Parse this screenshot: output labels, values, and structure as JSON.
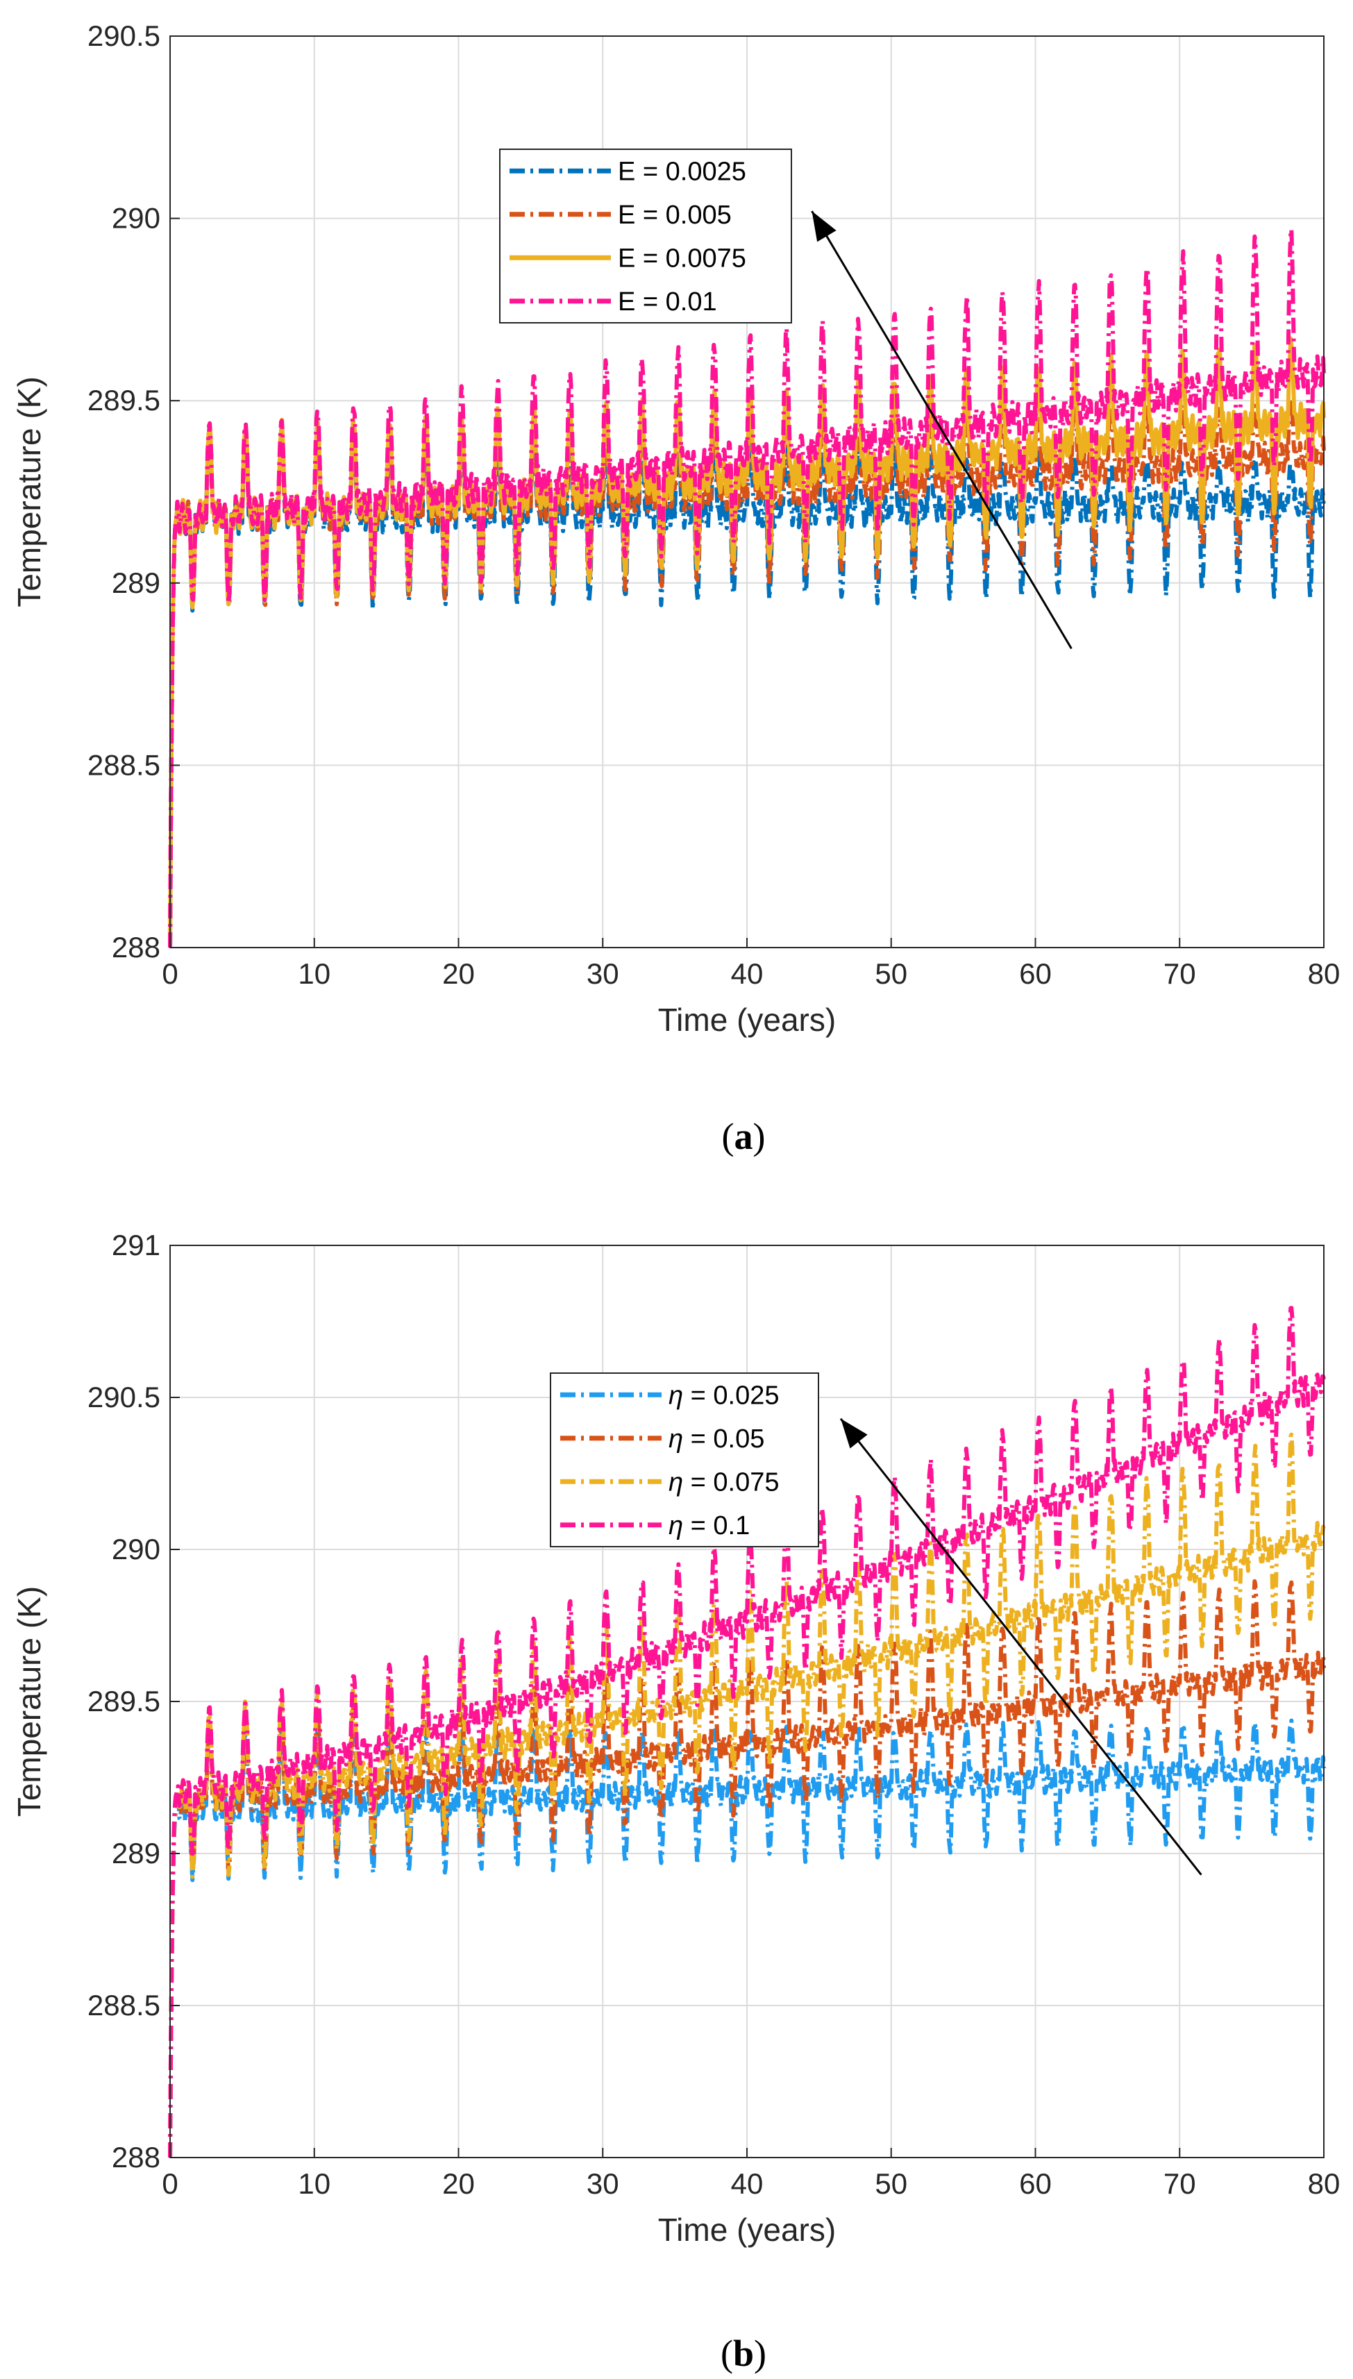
{
  "chart_data": [
    {
      "type": "line",
      "panel_caption": "a",
      "xlabel": "Time (years)",
      "ylabel": "Temperature (K)",
      "xlim": [
        0,
        80
      ],
      "ylim": [
        288,
        290.5
      ],
      "xticks": [
        "0",
        "10",
        "20",
        "30",
        "40",
        "50",
        "60",
        "70",
        "80"
      ],
      "yticks": [
        "288",
        "288.5",
        "289",
        "289.5",
        "290",
        "290.5"
      ],
      "grid": true,
      "legend_location": "upper-middle",
      "arrow": {
        "from": [
          62.5,
          288.82
        ],
        "to": [
          44.5,
          290.02
        ],
        "meaning": "increasing parameter"
      },
      "series": [
        {
          "name": "E = 0.0025",
          "color": "#0072BD",
          "dash": "dashdot",
          "start_temp": 288.0,
          "base": 289.18,
          "end_base": 289.22,
          "peak_start": 0.24,
          "peak_end": 0.1,
          "trough": 0.24
        },
        {
          "name": "E = 0.005",
          "color": "#D95319",
          "dash": "dashdot",
          "start_temp": 288.0,
          "base": 289.18,
          "end_base": 289.35,
          "peak_start": 0.24,
          "peak_end": 0.15,
          "trough": 0.24
        },
        {
          "name": "E = 0.0075",
          "color": "#EDB120",
          "dash": "solid",
          "start_temp": 288.0,
          "base": 289.18,
          "end_base": 289.45,
          "peak_start": 0.24,
          "peak_end": 0.22,
          "trough": 0.24
        },
        {
          "name": "E = 0.01",
          "color": "#FF1493",
          "dash": "dashdot",
          "start_temp": 288.0,
          "base": 289.18,
          "end_base": 289.58,
          "peak_start": 0.24,
          "peak_end": 0.4,
          "trough": 0.24
        }
      ]
    },
    {
      "type": "line",
      "panel_caption": "b",
      "xlabel": "Time (years)",
      "ylabel": "Temperature (K)",
      "xlim": [
        0,
        80
      ],
      "ylim": [
        288,
        291
      ],
      "xticks": [
        "0",
        "10",
        "20",
        "30",
        "40",
        "50",
        "60",
        "70",
        "80"
      ],
      "yticks": [
        "288",
        "288.5",
        "289",
        "289.5",
        "290",
        "290.5",
        "291"
      ],
      "grid": true,
      "legend_location": "upper-middle",
      "arrow": {
        "from": [
          71.5,
          288.93
        ],
        "to": [
          46.5,
          290.43
        ],
        "meaning": "increasing parameter"
      },
      "series": [
        {
          "name_symbol": "η",
          "name_value": " = 0.025",
          "color": "#1F9BF0",
          "dash": "dashdot",
          "start_temp": 288.0,
          "base": 289.15,
          "end_base": 289.28,
          "peak_start": 0.25,
          "peak_end": 0.15,
          "trough": 0.22
        },
        {
          "name_symbol": "η",
          "name_value": " = 0.05",
          "color": "#D95319",
          "dash": "dashdot",
          "start_temp": 288.0,
          "base": 289.17,
          "end_base": 289.62,
          "peak_start": 0.25,
          "peak_end": 0.3,
          "trough": 0.22
        },
        {
          "name_symbol": "η",
          "name_value": " = 0.075",
          "color": "#EDB120",
          "dash": "dashdot",
          "start_temp": 288.0,
          "base": 289.18,
          "end_base": 290.05,
          "peak_start": 0.28,
          "peak_end": 0.35,
          "trough": 0.25
        },
        {
          "name_symbol": "η",
          "name_value": " = 0.1",
          "color": "#FF1493",
          "dash": "dashdot",
          "start_temp": 288.0,
          "base": 289.2,
          "end_base": 290.55,
          "peak_start": 0.25,
          "peak_end": 0.3,
          "trough": 0.22
        }
      ]
    }
  ]
}
